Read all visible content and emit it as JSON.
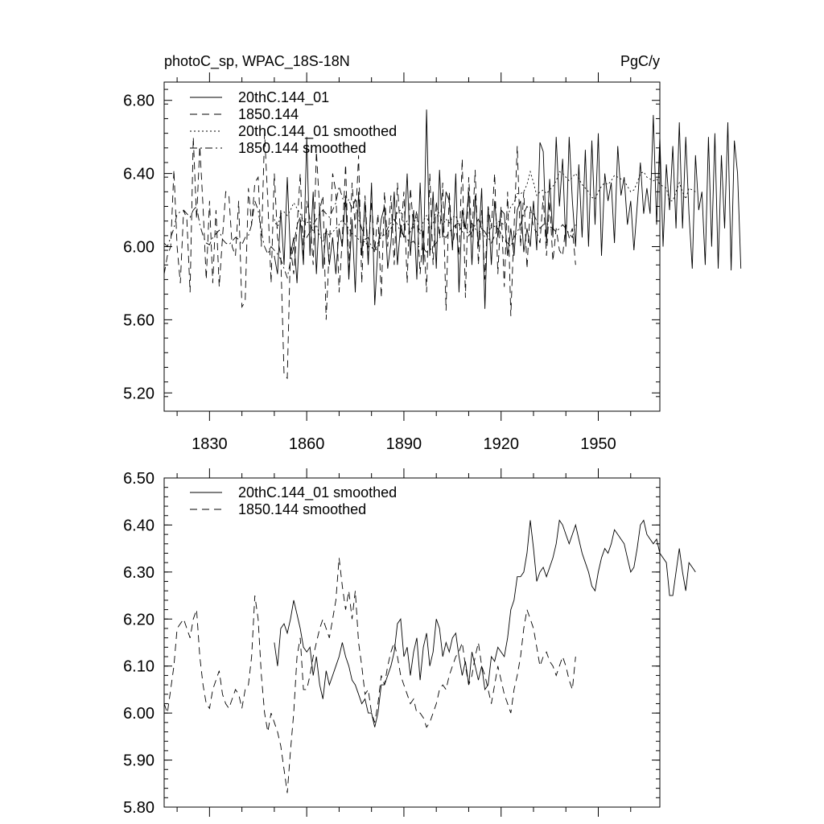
{
  "chart_data": [
    {
      "type": "line",
      "title": "photoC_sp, WPAC_18S-18N",
      "units": "PgC/y",
      "ylim": [
        5.1,
        6.9
      ],
      "xlim": [
        1816,
        1969
      ],
      "yticks": [
        "5.20",
        "5.60",
        "6.00",
        "6.40",
        "6.80"
      ],
      "xticks": [
        "1830",
        "1860",
        "1890",
        "1920",
        "1950"
      ],
      "legend_position": "top-left",
      "series": [
        {
          "name": "20thC.144_01",
          "style": "solid",
          "x_start": 1850,
          "values": [
            5.95,
            5.85,
            6.2,
            5.9,
            6.38,
            5.95,
            6.05,
            5.8,
            6.15,
            5.9,
            6.6,
            5.95,
            6.3,
            5.85,
            6.22,
            5.88,
            6.1,
            5.9,
            6.05,
            5.85,
            6.1,
            6.0,
            6.28,
            5.82,
            6.15,
            5.75,
            6.3,
            5.95,
            6.25,
            5.9,
            6.35,
            5.68,
            6.0,
            6.15,
            6.22,
            5.88,
            6.02,
            6.3,
            5.9,
            6.12,
            6.05,
            6.4,
            5.95,
            6.2,
            5.82,
            6.35,
            5.9,
            6.75,
            5.95,
            6.3,
            5.88,
            6.42,
            6.05,
            6.3,
            6.25,
            5.98,
            6.4,
            5.75,
            6.2,
            6.1,
            6.3,
            5.9,
            6.28,
            6.0,
            6.32,
            5.66,
            6.22,
            5.9,
            6.25,
            6.05,
            6.2,
            6.18,
            5.95,
            6.1,
            5.95,
            6.2,
            6.25,
            5.97,
            6.1,
            6.0,
            6.25,
            5.98,
            6.57,
            6.52,
            6.02,
            6.37,
            6.05,
            6.6,
            6.22,
            6.48,
            6.0,
            6.6,
            6.25,
            6.0,
            6.45,
            6.05,
            6.53,
            6.0,
            6.58,
            6.12,
            6.62,
            5.95,
            6.4,
            6.25,
            6.35,
            6.02,
            6.55,
            6.28,
            6.38,
            6.12,
            6.25,
            5.98,
            6.22,
            6.46,
            6.18,
            6.32,
            6.18,
            6.72,
            6.12,
            6.6,
            6.0,
            6.45,
            6.2,
            6.55,
            6.1,
            6.68,
            6.1,
            6.6,
            6.18,
            5.88,
            6.5,
            6.2,
            6.3,
            5.9,
            6.6,
            6.0,
            6.62,
            5.88,
            6.5,
            6.1,
            6.68,
            5.87,
            6.58,
            6.4,
            5.88
          ]
        },
        {
          "name": "1850.144",
          "style": "dashed",
          "x_start": 1816,
          "values": [
            5.85,
            5.95,
            6.0,
            6.42,
            6.0,
            5.8,
            6.2,
            6.15,
            5.75,
            6.6,
            6.15,
            6.55,
            6.22,
            5.82,
            6.25,
            5.8,
            6.2,
            5.78,
            6.05,
            6.3,
            6.28,
            6.0,
            5.95,
            6.25,
            5.67,
            5.7,
            6.32,
            6.12,
            6.35,
            6.38,
            6.0,
            6.62,
            6.25,
            5.8,
            6.4,
            6.05,
            5.95,
            5.3,
            5.28,
            6.0,
            5.85,
            6.1,
            6.4,
            5.95,
            6.25,
            6.15,
            5.9,
            6.52,
            6.2,
            6.28,
            5.6,
            6.0,
            6.4,
            6.3,
            5.75,
            6.05,
            6.45,
            5.85,
            6.35,
            6.1,
            6.5,
            5.8,
            6.28,
            5.95,
            6.25,
            5.98,
            6.18,
            5.72,
            6.3,
            6.0,
            6.28,
            5.9,
            6.35,
            6.05,
            6.3,
            5.8,
            6.32,
            6.1,
            6.2,
            5.85,
            6.1,
            5.75,
            6.4,
            5.9,
            6.25,
            6.05,
            6.35,
            5.65,
            6.3,
            6.0,
            6.12,
            5.95,
            6.48,
            5.72,
            6.38,
            6.05,
            6.42,
            5.9,
            6.2,
            5.82,
            6.22,
            6.1,
            6.4,
            5.85,
            6.22,
            5.78,
            6.3,
            5.62,
            6.1,
            6.55,
            6.0,
            6.3,
            5.88,
            6.22,
            6.1,
            6.08,
            6.02,
            6.28,
            5.95,
            6.25,
            5.92,
            6.1,
            5.98,
            5.95,
            6.12,
            6.05,
            6.1,
            5.9
          ]
        },
        {
          "name": "20thC.144_01 smoothed",
          "style": "dotted",
          "x_start": 1850,
          "values": [
            6.15,
            6.1,
            6.18,
            6.19,
            6.17,
            6.2,
            6.24,
            6.21,
            6.18,
            6.14,
            6.13,
            6.14,
            6.08,
            6.12,
            6.06,
            6.03,
            6.09,
            6.06,
            6.08,
            6.1,
            6.12,
            6.15,
            6.12,
            6.1,
            6.07,
            6.06,
            6.04,
            6.02,
            6.03,
            6.0,
            6.0,
            5.97,
            6.0,
            6.06,
            6.06,
            6.08,
            6.1,
            6.13,
            6.19,
            6.2,
            6.12,
            6.14,
            6.08,
            6.13,
            6.16,
            6.07,
            6.14,
            6.17,
            6.1,
            6.13,
            6.2,
            6.18,
            6.12,
            6.15,
            6.13,
            6.16,
            6.17,
            6.12,
            6.08,
            6.11,
            6.06,
            6.13,
            6.1,
            6.07,
            6.1,
            6.05,
            6.06,
            6.12,
            6.11,
            6.14,
            6.13,
            6.12,
            6.16,
            6.22,
            6.24,
            6.29,
            6.29,
            6.3,
            6.34,
            6.41,
            6.35,
            6.28,
            6.3,
            6.31,
            6.29,
            6.31,
            6.33,
            6.36,
            6.41,
            6.4,
            6.38,
            6.36,
            6.38,
            6.4,
            6.37,
            6.34,
            6.32,
            6.3,
            6.27,
            6.26,
            6.3,
            6.33,
            6.35,
            6.34,
            6.36,
            6.39,
            6.38,
            6.37,
            6.36,
            6.33,
            6.3,
            6.31,
            6.35,
            6.4,
            6.41,
            6.38,
            6.37,
            6.36,
            6.37,
            6.34,
            6.33,
            6.32,
            6.25,
            6.25,
            6.3,
            6.35,
            6.3,
            6.26,
            6.32,
            6.31,
            6.3
          ]
        },
        {
          "name": "1850.144 smoothed",
          "style": "dash-dot",
          "x_start": 1816,
          "values": [
            6.02,
            6.0,
            6.05,
            6.1,
            6.18,
            6.19,
            6.2,
            6.18,
            6.16,
            6.2,
            6.22,
            6.12,
            6.06,
            6.02,
            6.01,
            6.05,
            6.07,
            6.09,
            6.04,
            6.02,
            6.01,
            6.03,
            6.05,
            6.04,
            6.01,
            6.05,
            6.06,
            6.12,
            6.25,
            6.2,
            6.08,
            6.0,
            5.96,
            6.0,
            5.98,
            5.96,
            5.93,
            5.88,
            5.83,
            5.92,
            6.0,
            6.12,
            6.16,
            6.05,
            6.05,
            6.08,
            6.12,
            6.15,
            6.18,
            6.2,
            6.18,
            6.16,
            6.2,
            6.24,
            6.33,
            6.27,
            6.22,
            6.26,
            6.2,
            6.26,
            6.15,
            6.1,
            6.04,
            6.05,
            6.0,
            5.98,
            6.02,
            6.08,
            6.06,
            6.1,
            6.13,
            6.15,
            6.12,
            6.08,
            6.06,
            6.04,
            6.02,
            6.03,
            6.0,
            6.0,
            5.99,
            5.97,
            5.98,
            6.0,
            6.02,
            6.05,
            6.06,
            6.05,
            6.08,
            6.1,
            6.12,
            6.13,
            6.15,
            6.1,
            6.06,
            6.08,
            6.12,
            6.15,
            6.1,
            6.08,
            6.05,
            6.02,
            6.06,
            6.1,
            6.07,
            6.04,
            6.02,
            6.0,
            6.05,
            6.08,
            6.12,
            6.18,
            6.22,
            6.2,
            6.18,
            6.14,
            6.1,
            6.12,
            6.13,
            6.11,
            6.1,
            6.08,
            6.1,
            6.12,
            6.1,
            6.07,
            6.05,
            6.12
          ]
        }
      ]
    },
    {
      "type": "line",
      "ylim": [
        5.8,
        6.5
      ],
      "xlim": [
        1816,
        1969
      ],
      "yticks": [
        "5.80",
        "5.90",
        "6.00",
        "6.10",
        "6.20",
        "6.30",
        "6.40",
        "6.50"
      ],
      "legend_position": "top-left",
      "series": [
        {
          "name": "20thC.144_01 smoothed",
          "style": "solid",
          "x_start": 1850,
          "values": [
            6.15,
            6.1,
            6.18,
            6.19,
            6.17,
            6.2,
            6.24,
            6.21,
            6.18,
            6.14,
            6.13,
            6.14,
            6.08,
            6.12,
            6.06,
            6.03,
            6.09,
            6.06,
            6.08,
            6.1,
            6.12,
            6.15,
            6.12,
            6.1,
            6.07,
            6.06,
            6.04,
            6.02,
            6.03,
            6.0,
            6.0,
            5.97,
            6.0,
            6.06,
            6.06,
            6.08,
            6.1,
            6.13,
            6.19,
            6.2,
            6.12,
            6.14,
            6.08,
            6.13,
            6.16,
            6.07,
            6.14,
            6.17,
            6.1,
            6.13,
            6.2,
            6.18,
            6.12,
            6.15,
            6.13,
            6.16,
            6.17,
            6.12,
            6.08,
            6.11,
            6.06,
            6.13,
            6.1,
            6.07,
            6.1,
            6.05,
            6.06,
            6.12,
            6.11,
            6.14,
            6.13,
            6.12,
            6.16,
            6.22,
            6.24,
            6.29,
            6.29,
            6.3,
            6.34,
            6.41,
            6.35,
            6.28,
            6.3,
            6.31,
            6.29,
            6.31,
            6.33,
            6.36,
            6.41,
            6.4,
            6.38,
            6.36,
            6.38,
            6.4,
            6.37,
            6.34,
            6.32,
            6.3,
            6.27,
            6.26,
            6.3,
            6.33,
            6.35,
            6.34,
            6.36,
            6.39,
            6.38,
            6.37,
            6.36,
            6.33,
            6.3,
            6.31,
            6.35,
            6.4,
            6.41,
            6.38,
            6.37,
            6.36,
            6.37,
            6.34,
            6.33,
            6.32,
            6.25,
            6.25,
            6.3,
            6.35,
            6.3,
            6.26,
            6.32,
            6.31,
            6.3
          ]
        },
        {
          "name": "1850.144 smoothed",
          "style": "dashed",
          "x_start": 1816,
          "values": [
            6.02,
            6.0,
            6.05,
            6.1,
            6.18,
            6.19,
            6.2,
            6.18,
            6.16,
            6.2,
            6.22,
            6.12,
            6.06,
            6.02,
            6.01,
            6.05,
            6.07,
            6.09,
            6.04,
            6.02,
            6.01,
            6.03,
            6.05,
            6.04,
            6.01,
            6.05,
            6.06,
            6.12,
            6.25,
            6.2,
            6.08,
            6.0,
            5.96,
            6.0,
            5.98,
            5.96,
            5.93,
            5.88,
            5.83,
            5.92,
            6.0,
            6.12,
            6.16,
            6.05,
            6.05,
            6.08,
            6.12,
            6.15,
            6.18,
            6.2,
            6.18,
            6.16,
            6.2,
            6.24,
            6.33,
            6.27,
            6.22,
            6.26,
            6.2,
            6.26,
            6.15,
            6.1,
            6.04,
            6.05,
            6.0,
            5.98,
            6.02,
            6.08,
            6.06,
            6.1,
            6.13,
            6.15,
            6.12,
            6.08,
            6.06,
            6.04,
            6.02,
            6.03,
            6.0,
            6.0,
            5.99,
            5.97,
            5.98,
            6.0,
            6.02,
            6.05,
            6.06,
            6.05,
            6.08,
            6.1,
            6.12,
            6.13,
            6.15,
            6.1,
            6.06,
            6.08,
            6.12,
            6.15,
            6.1,
            6.08,
            6.05,
            6.02,
            6.06,
            6.1,
            6.07,
            6.04,
            6.02,
            6.0,
            6.05,
            6.08,
            6.12,
            6.18,
            6.22,
            6.2,
            6.18,
            6.14,
            6.1,
            6.12,
            6.13,
            6.11,
            6.1,
            6.08,
            6.1,
            6.12,
            6.1,
            6.07,
            6.05,
            6.12
          ]
        }
      ]
    }
  ]
}
